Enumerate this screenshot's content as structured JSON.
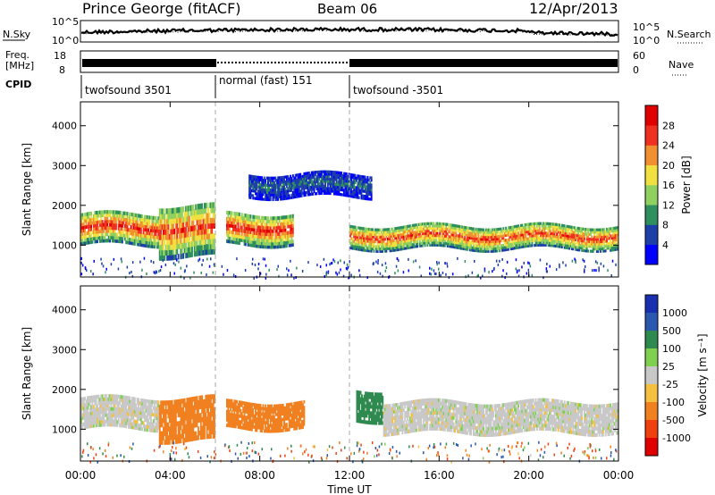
{
  "header": {
    "station": "Prince George (fitACF)",
    "beam": "Beam 06",
    "date": "12/Apr/2013"
  },
  "labels": {
    "nsky": "N.Sky",
    "freq_line1": "Freq.",
    "freq_line2": "[MHz]",
    "cpid": "CPID",
    "nsearch": "N.Search",
    "nave": "Nave"
  },
  "noise_axis": {
    "left_top": "10^5",
    "left_bottom": "10^0",
    "right_top": "10^5",
    "right_bottom": "10^0"
  },
  "freq_axis": {
    "left_top": "18",
    "left_bottom": "8",
    "right_top": "60",
    "right_bottom": "0"
  },
  "cpid_segments": [
    {
      "label": "twofsound 3501",
      "start_ut": 0,
      "end_ut": 6
    },
    {
      "label": "normal (fast) 151",
      "start_ut": 6,
      "end_ut": 12
    },
    {
      "label": "twofsound -3501",
      "start_ut": 12,
      "end_ut": 24
    }
  ],
  "colors": {
    "power_scale": [
      "#0000ff",
      "#1e3fa8",
      "#2f8f5f",
      "#8fd060",
      "#f0e040",
      "#f09030",
      "#f03020",
      "#e00000"
    ],
    "velocity_scale": [
      "#1a2fb0",
      "#2a57b0",
      "#2f8a4f",
      "#80d050",
      "#c8c8c8",
      "#f5c040",
      "#f08020",
      "#f04010",
      "#e00000"
    ]
  },
  "chart_data": [
    {
      "type": "heatmap",
      "title": "Power",
      "ylabel": "Slant Range [km]",
      "colorbar_label": "Power [dB]",
      "colorbar_ticks": [
        "4",
        "8",
        "12",
        "16",
        "20",
        "24",
        "28"
      ],
      "y_ticks": [
        "1000",
        "2000",
        "3000",
        "4000"
      ],
      "ylim": [
        200,
        4600
      ],
      "xlim": [
        0,
        24
      ],
      "x_ticks": [
        "00:00",
        "04:00",
        "08:00",
        "12:00",
        "16:00",
        "20:00",
        "00:00"
      ],
      "description_note": "",
      "regions": [
        {
          "ut_start": 0.0,
          "ut_end": 3.5,
          "range_low": 1000,
          "range_high": 1800,
          "peak_db": 28
        },
        {
          "ut_start": 3.5,
          "ut_end": 6.0,
          "range_low": 700,
          "range_high": 2000,
          "peak_db": 26
        },
        {
          "ut_start": 6.5,
          "ut_end": 9.5,
          "range_low": 1000,
          "range_high": 1800,
          "peak_db": 28
        },
        {
          "ut_start": 7.5,
          "ut_end": 13.0,
          "range_low": 2200,
          "range_high": 2800,
          "peak_db": 8
        },
        {
          "ut_start": 12.0,
          "ut_end": 24.0,
          "range_low": 900,
          "range_high": 1500,
          "peak_db": 26
        }
      ]
    },
    {
      "type": "heatmap",
      "title": "Velocity",
      "ylabel": "Slant Range [km]",
      "xlabel": "Time UT",
      "colorbar_label": "Velocity [m s⁻¹]",
      "colorbar_ticks": [
        "1000",
        "500",
        "100",
        "25",
        "-25",
        "-100",
        "-500",
        "-1000"
      ],
      "y_ticks": [
        "1000",
        "2000",
        "3000",
        "4000"
      ],
      "ylim": [
        200,
        4600
      ],
      "xlim": [
        0,
        24
      ],
      "x_ticks": [
        "00:00",
        "04:00",
        "08:00",
        "12:00",
        "16:00",
        "20:00",
        "00:00"
      ],
      "regions": [
        {
          "ut_start": 0.0,
          "ut_end": 3.5,
          "range_low": 1000,
          "range_high": 1800,
          "velocity": 0
        },
        {
          "ut_start": 3.5,
          "ut_end": 6.0,
          "range_low": 700,
          "range_high": 1800,
          "velocity": -400
        },
        {
          "ut_start": 6.5,
          "ut_end": 10.0,
          "range_low": 1000,
          "range_high": 1700,
          "velocity": -300
        },
        {
          "ut_start": 12.3,
          "ut_end": 13.5,
          "range_low": 1200,
          "range_high": 2000,
          "velocity": 200
        },
        {
          "ut_start": 13.5,
          "ut_end": 24.0,
          "range_low": 900,
          "range_high": 1700,
          "velocity": 0
        }
      ]
    }
  ],
  "time_axis_label": "Time UT"
}
